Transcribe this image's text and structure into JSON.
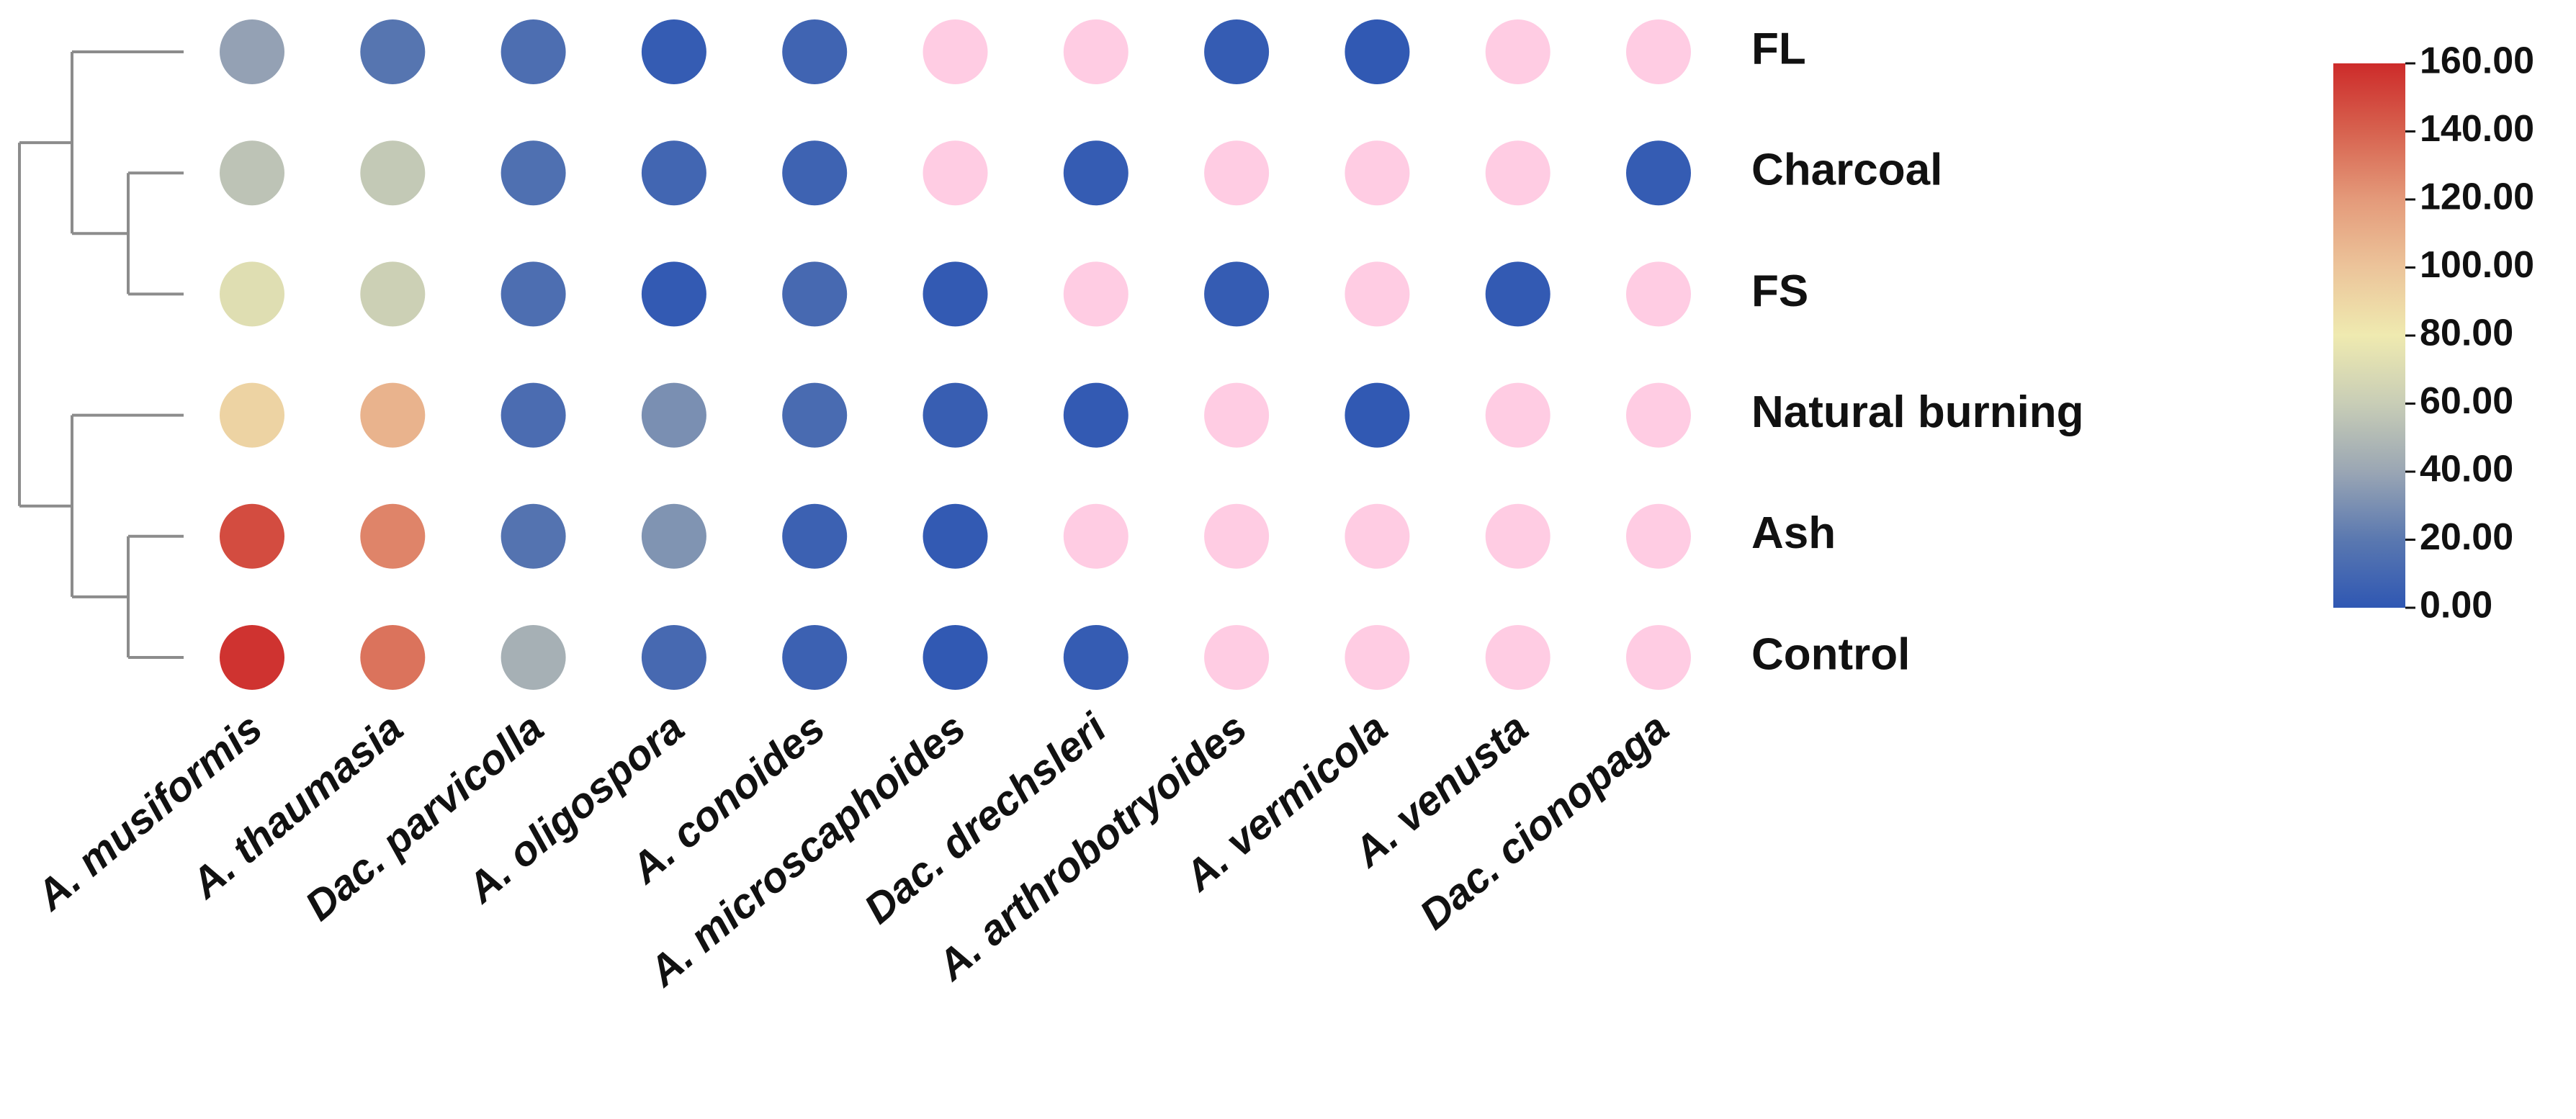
{
  "chart_data": {
    "type": "heatmap",
    "title": "",
    "xlabel": "",
    "ylabel": "",
    "columns": [
      "A. musiformis",
      "A. thaumasia",
      "Dac. parvicolla",
      "A. oligospora",
      "A. conoides",
      "A. microscaphoides",
      "Dac. drechsleri",
      "A. arthrobotryoides",
      "A. vermicola",
      "A. venusta",
      "Dac. cionopaga"
    ],
    "rows": [
      "FL",
      "Charcoal",
      "FS",
      "Natural burning",
      "Ash",
      "Control"
    ],
    "values": [
      [
        38,
        18,
        14,
        3,
        8,
        null,
        null,
        3,
        1,
        null,
        null
      ],
      [
        55,
        58,
        15,
        9,
        7,
        null,
        3,
        null,
        null,
        null,
        3
      ],
      [
        72,
        62,
        14,
        2,
        11,
        2,
        null,
        3,
        null,
        2,
        null
      ],
      [
        92,
        108,
        13,
        30,
        12,
        4,
        2,
        null,
        1,
        null,
        null
      ],
      [
        148,
        128,
        17,
        32,
        6,
        2,
        null,
        null,
        null,
        null,
        null
      ],
      [
        157,
        134,
        45,
        11,
        6,
        1,
        3,
        null,
        null,
        null,
        null
      ]
    ],
    "missing_value_color": "#ffcce3",
    "colorscale": {
      "min": 0,
      "max": 160,
      "ticks": [
        "0.00",
        "20.00",
        "40.00",
        "60.00",
        "80.00",
        "100.00",
        "120.00",
        "140.00",
        "160.00"
      ],
      "colors": [
        "#2f57b3",
        "#5a78b0",
        "#9aa6b4",
        "#c8cdb6",
        "#efeab0",
        "#ecc49a",
        "#e49a7a",
        "#d7624f",
        "#cd2b2a"
      ]
    },
    "dendrogram": {
      "groups": [
        [
          "FL",
          [
            "Charcoal",
            "FS"
          ]
        ],
        [
          "Natural burning",
          [
            "Ash",
            "Control"
          ]
        ]
      ],
      "line_color": "#8c8c8c"
    },
    "grid": false,
    "legend_position": "right"
  }
}
